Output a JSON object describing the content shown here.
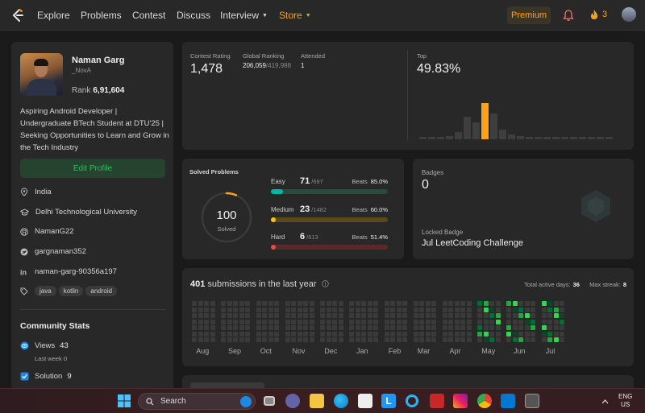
{
  "nav": {
    "items": [
      "Explore",
      "Problems",
      "Contest",
      "Discuss",
      "Interview",
      "Store"
    ],
    "premium": "Premium",
    "streak": "3"
  },
  "profile": {
    "name": "Naman Garg",
    "username": "_NovA",
    "rank_label": "Rank",
    "rank": "6,91,604",
    "bio": "Aspiring Android Developer | Undergraduate BTech Student at DTU'25 | Seeking Opportunities to Learn and Grow in the Tech Industry",
    "edit_button": "Edit Profile",
    "location": "India",
    "university": "Delhi Technological University",
    "github": "NamanG22",
    "twitter": "gargnaman352",
    "linkedin": "naman-garg-90356a197",
    "tags": [
      "java",
      "kotlin",
      "android"
    ]
  },
  "community": {
    "title": "Community Stats",
    "views_label": "Views",
    "views": "43",
    "views_sub": "Last week 0",
    "solution_label": "Solution",
    "solution": "9"
  },
  "contest": {
    "rating_label": "Contest Rating",
    "rating": "1,478",
    "ranking_label": "Global Ranking",
    "ranking": "206,059",
    "ranking_total": "/419,988",
    "attended_label": "Attended",
    "attended": "1",
    "top_label": "Top",
    "top": "49.83%",
    "histogram": [
      0.05,
      0.05,
      0.06,
      0.08,
      0.17,
      0.51,
      0.39,
      0.82,
      0.58,
      0.21,
      0.11,
      0.08,
      0.06,
      0.06,
      0.05,
      0.05,
      0.05,
      0.05,
      0.05,
      0.05,
      0.05,
      0.05
    ],
    "highlight_index": 7
  },
  "solved": {
    "title": "Solved Problems",
    "count": "100",
    "label": "Solved",
    "difficulties": [
      {
        "name": "Easy",
        "count": "71",
        "total": "/697",
        "beats_label": "Beats",
        "beats": "85.0%",
        "fraction": 0.102,
        "color": "#00b8a3",
        "track": "#2a4a3a"
      },
      {
        "name": "Medium",
        "count": "23",
        "total": "/1482",
        "beats_label": "Beats",
        "beats": "60.0%",
        "fraction": 0.016,
        "color": "#ffc01e",
        "track": "#5a4a1a"
      },
      {
        "name": "Hard",
        "count": "6",
        "total": "/613",
        "beats_label": "Beats",
        "beats": "51.4%",
        "fraction": 0.01,
        "color": "#ef4743",
        "track": "#5a2a2a"
      }
    ]
  },
  "badges": {
    "title": "Badges",
    "count": "0",
    "locked_label": "Locked Badge",
    "locked_name": "Jul LeetCoding Challenge"
  },
  "submissions": {
    "count": "401",
    "label": "submissions in the last year",
    "active_label": "Total active days:",
    "active_days": "36",
    "streak_label": "Max streak:",
    "max_streak": "8",
    "months": [
      "Aug",
      "Sep",
      "Oct",
      "Nov",
      "Dec",
      "Jan",
      "Feb",
      "Mar",
      "Apr",
      "May",
      "Jun",
      "Jul"
    ]
  },
  "taskbar": {
    "search": "Search",
    "lang_top": "ENG",
    "lang_bottom": "US"
  },
  "colors": {
    "accent": "#ffa116",
    "green": "#2cbb5d",
    "card": "#282828",
    "bg": "#1a1a1a"
  }
}
